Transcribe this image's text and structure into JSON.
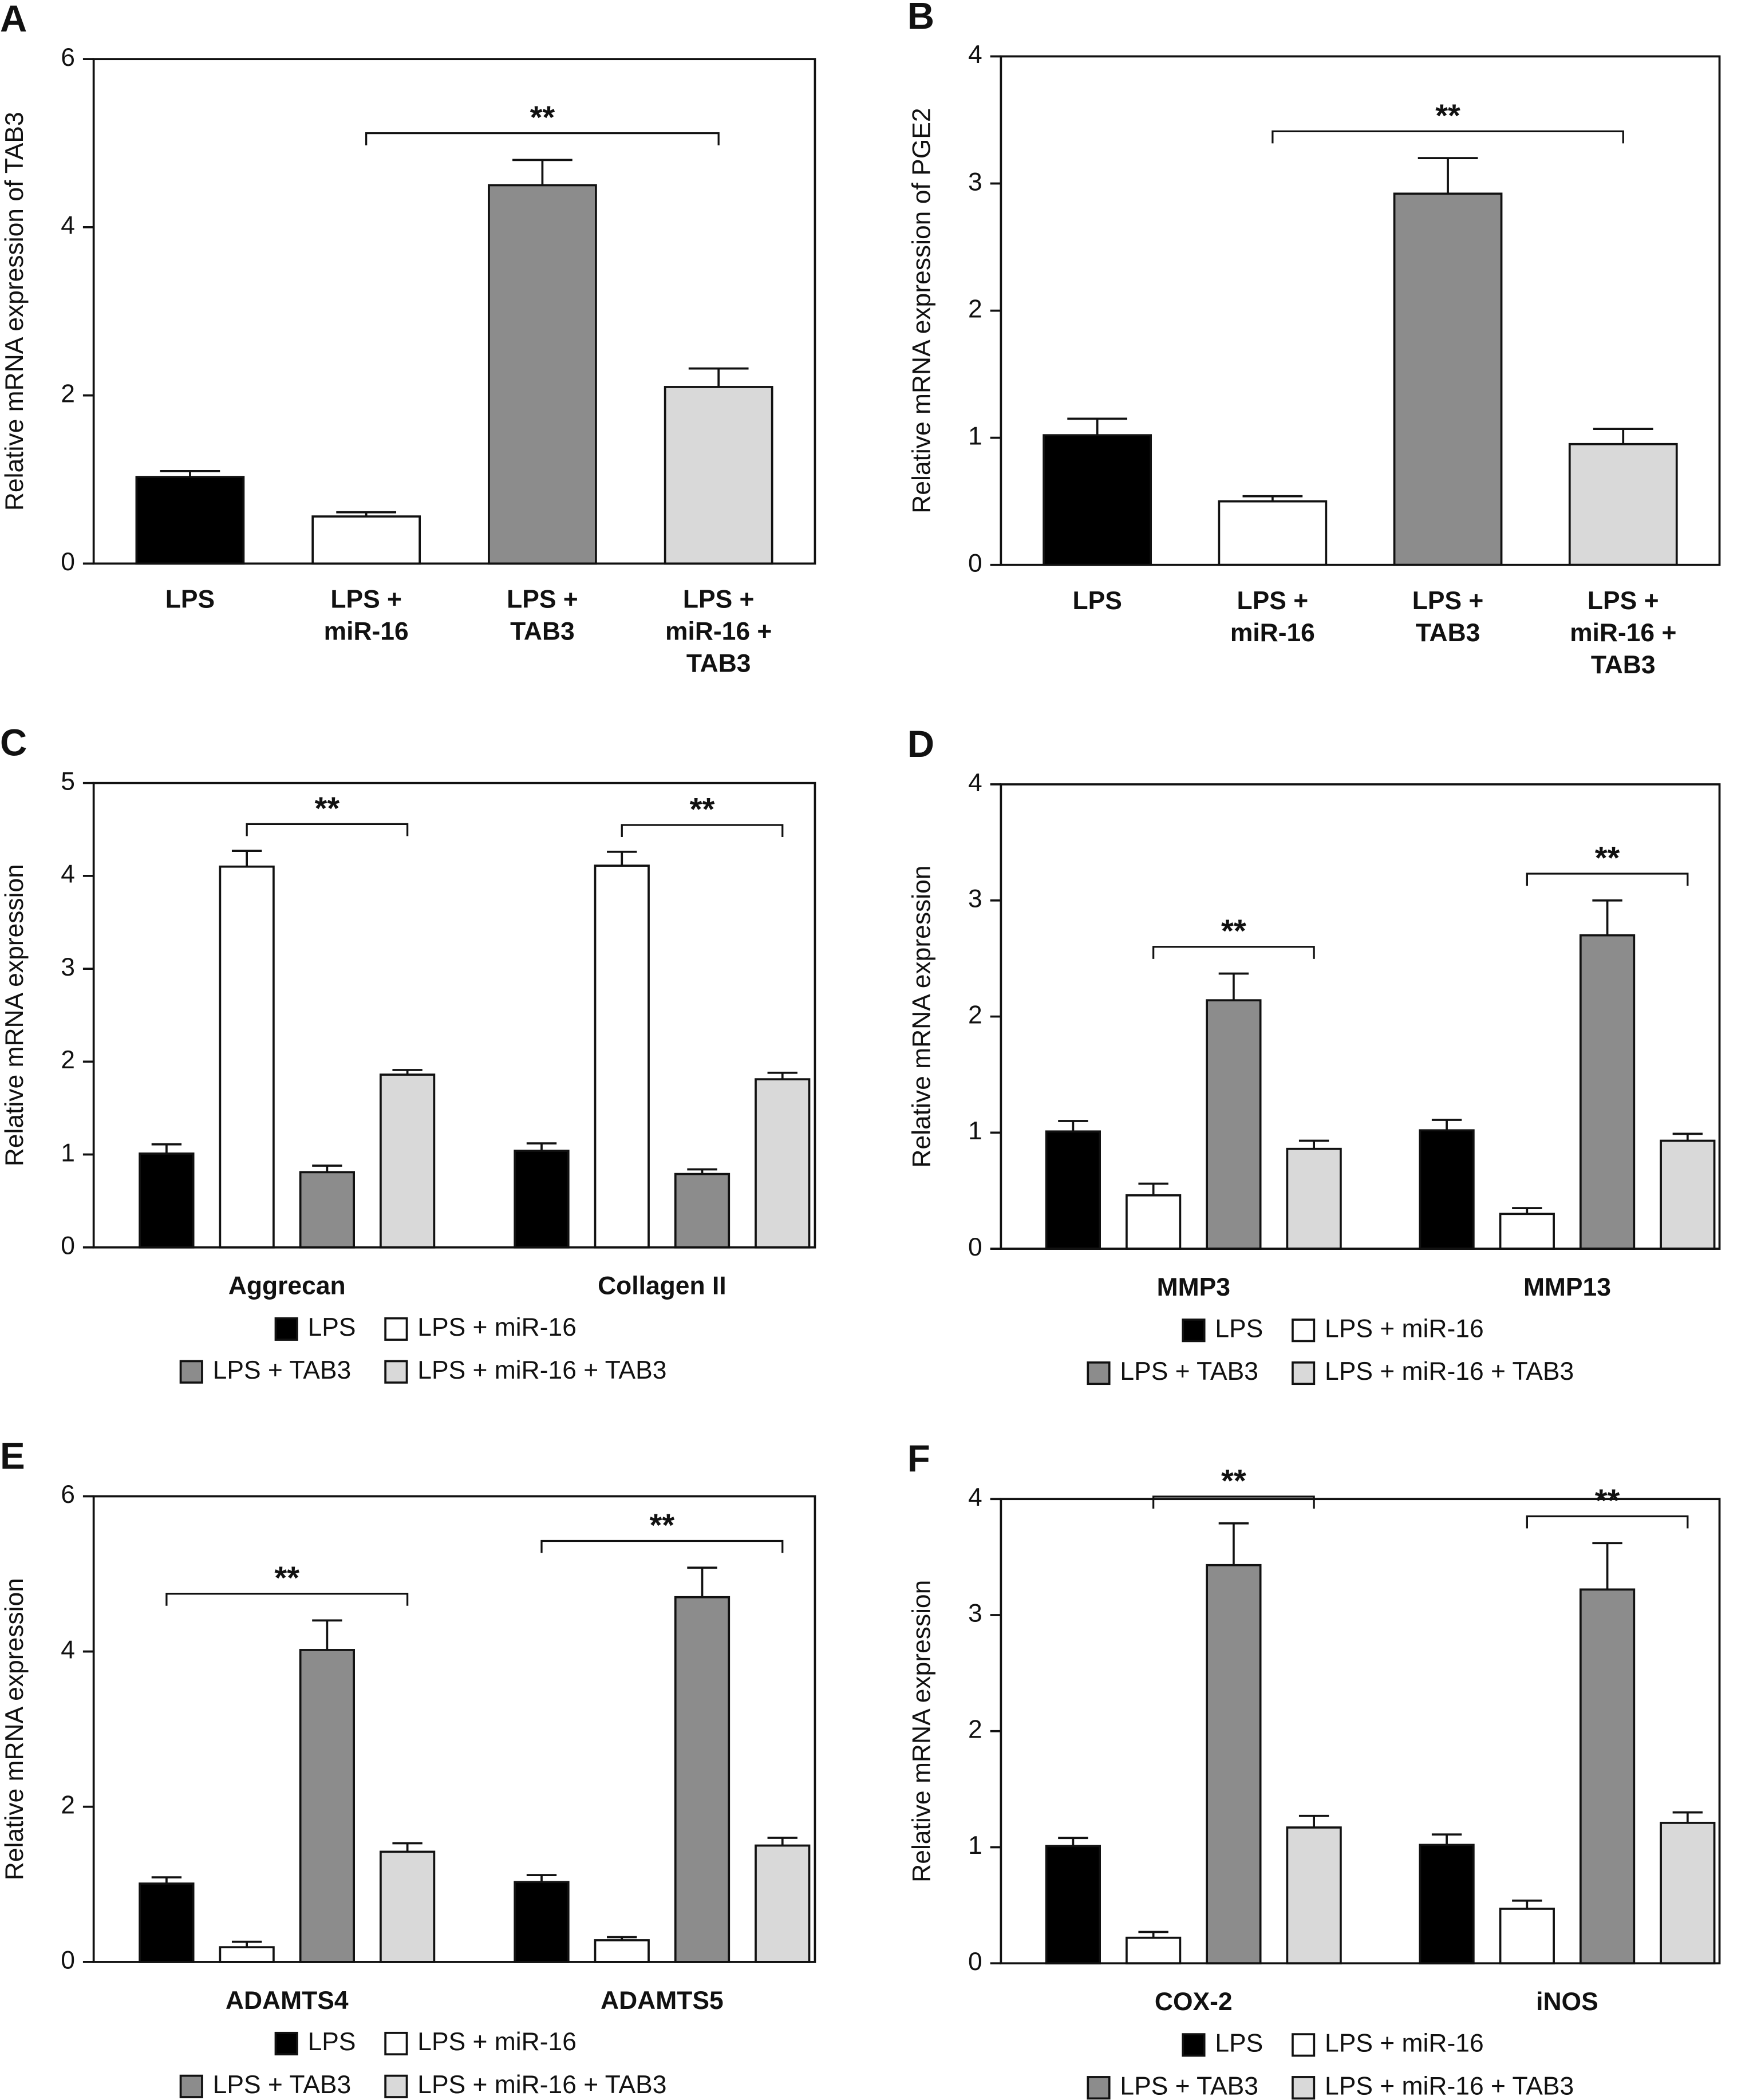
{
  "chart_data": [
    {
      "type": "bar",
      "panel": "A",
      "ylabel": "Relative mRNA expression of TAB3",
      "categories": [
        [
          "LPS"
        ],
        [
          "LPS +",
          "miR-16"
        ],
        [
          "LPS +",
          "TAB3"
        ],
        [
          "LPS +",
          "miR-16 +",
          "TAB3"
        ]
      ],
      "values": [
        1.03,
        0.56,
        4.5,
        2.1
      ],
      "errors": [
        0.07,
        0.05,
        0.3,
        0.22
      ],
      "colors": [
        "#000000",
        "#ffffff",
        "#8c8c8c",
        "#d9d9d9"
      ],
      "ylim": [
        0,
        6
      ],
      "yticks": [
        0,
        2,
        4,
        6
      ],
      "significance": [
        {
          "text": "**",
          "from": 1,
          "to": 3
        }
      ]
    },
    {
      "type": "bar",
      "panel": "B",
      "ylabel": "Relative mRNA expression of PGE2",
      "categories": [
        [
          "LPS"
        ],
        [
          "LPS +",
          "miR-16"
        ],
        [
          "LPS +",
          "TAB3"
        ],
        [
          "LPS +",
          "miR-16 +",
          "TAB3"
        ]
      ],
      "values": [
        1.02,
        0.5,
        2.92,
        0.95
      ],
      "errors": [
        0.13,
        0.04,
        0.28,
        0.12
      ],
      "colors": [
        "#000000",
        "#ffffff",
        "#8c8c8c",
        "#d9d9d9"
      ],
      "ylim": [
        0,
        4
      ],
      "yticks": [
        0,
        1,
        2,
        3,
        4
      ],
      "significance": [
        {
          "text": "**",
          "from": 1,
          "to": 3
        }
      ]
    },
    {
      "type": "grouped_bar",
      "panel": "C",
      "ylabel": "Relative mRNA expression",
      "categories": [
        "Aggrecan",
        "Collagen II"
      ],
      "series": [
        {
          "name": "LPS",
          "color": "#000000",
          "values": [
            1.01,
            1.04
          ],
          "errors": [
            0.1,
            0.08
          ]
        },
        {
          "name": "LPS + miR-16",
          "color": "#ffffff",
          "values": [
            4.1,
            4.11
          ],
          "errors": [
            0.17,
            0.15
          ]
        },
        {
          "name": "LPS + TAB3",
          "color": "#8c8c8c",
          "values": [
            0.81,
            0.79
          ],
          "errors": [
            0.07,
            0.05
          ]
        },
        {
          "name": "LPS + miR-16 + TAB3",
          "color": "#d9d9d9",
          "values": [
            1.86,
            1.81
          ],
          "errors": [
            0.05,
            0.07
          ]
        }
      ],
      "ylim": [
        0,
        5
      ],
      "yticks": [
        0,
        1,
        2,
        3,
        4,
        5
      ],
      "significance": [
        {
          "text": "**",
          "group": 0,
          "from": 1,
          "to": 3
        },
        {
          "text": "**",
          "group": 1,
          "from": 1,
          "to": 3
        }
      ]
    },
    {
      "type": "grouped_bar",
      "panel": "D",
      "ylabel": "Relative mRNA expression",
      "categories": [
        "MMP3",
        "MMP13"
      ],
      "series": [
        {
          "name": "LPS",
          "color": "#000000",
          "values": [
            1.01,
            1.02
          ],
          "errors": [
            0.09,
            0.09
          ]
        },
        {
          "name": "LPS + miR-16",
          "color": "#ffffff",
          "values": [
            0.46,
            0.3
          ],
          "errors": [
            0.1,
            0.05
          ]
        },
        {
          "name": "LPS + TAB3",
          "color": "#8c8c8c",
          "values": [
            2.14,
            2.7
          ],
          "errors": [
            0.23,
            0.3
          ]
        },
        {
          "name": "LPS + miR-16 + TAB3",
          "color": "#d9d9d9",
          "values": [
            0.86,
            0.93
          ],
          "errors": [
            0.07,
            0.06
          ]
        }
      ],
      "ylim": [
        0,
        4
      ],
      "yticks": [
        0,
        1,
        2,
        3,
        4
      ],
      "significance": [
        {
          "text": "**",
          "group": 0,
          "from": 1,
          "to": 3
        },
        {
          "text": "**",
          "group": 1,
          "from": 1,
          "to": 3
        }
      ]
    },
    {
      "type": "grouped_bar",
      "panel": "E",
      "ylabel": "Relative mRNA expression",
      "categories": [
        "ADAMTS4",
        "ADAMTS5"
      ],
      "series": [
        {
          "name": "LPS",
          "color": "#000000",
          "values": [
            1.01,
            1.03
          ],
          "errors": [
            0.08,
            0.09
          ]
        },
        {
          "name": "LPS + miR-16",
          "color": "#ffffff",
          "values": [
            0.19,
            0.28
          ],
          "errors": [
            0.07,
            0.04
          ]
        },
        {
          "name": "LPS + TAB3",
          "color": "#8c8c8c",
          "values": [
            4.02,
            4.7
          ],
          "errors": [
            0.38,
            0.38
          ]
        },
        {
          "name": "LPS + miR-16 + TAB3",
          "color": "#d9d9d9",
          "values": [
            1.42,
            1.5
          ],
          "errors": [
            0.11,
            0.1
          ]
        }
      ],
      "ylim": [
        0,
        6
      ],
      "yticks": [
        0,
        2,
        4,
        6
      ],
      "significance": [
        {
          "text": "**",
          "group": 0,
          "from": 0,
          "to": 3
        },
        {
          "text": "**",
          "group": 1,
          "from": 0,
          "to": 3
        }
      ]
    },
    {
      "type": "grouped_bar",
      "panel": "F",
      "ylabel": "Relative mRNA expression",
      "categories": [
        "COX-2",
        "iNOS"
      ],
      "series": [
        {
          "name": "LPS",
          "color": "#000000",
          "values": [
            1.01,
            1.02
          ],
          "errors": [
            0.07,
            0.09
          ]
        },
        {
          "name": "LPS + miR-16",
          "color": "#ffffff",
          "values": [
            0.22,
            0.47
          ],
          "errors": [
            0.05,
            0.07
          ]
        },
        {
          "name": "LPS + TAB3",
          "color": "#8c8c8c",
          "values": [
            3.43,
            3.22
          ],
          "errors": [
            0.36,
            0.4
          ]
        },
        {
          "name": "LPS + miR-16 + TAB3",
          "color": "#d9d9d9",
          "values": [
            1.17,
            1.21
          ],
          "errors": [
            0.1,
            0.09
          ]
        }
      ],
      "ylim": [
        0,
        4
      ],
      "yticks": [
        0,
        1,
        2,
        3,
        4
      ],
      "significance": [
        {
          "text": "**",
          "group": 0,
          "from": 1,
          "to": 3
        },
        {
          "text": "**",
          "group": 1,
          "from": 1,
          "to": 3
        }
      ]
    }
  ]
}
